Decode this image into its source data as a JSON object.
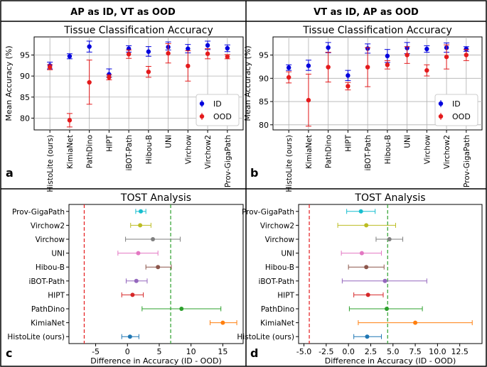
{
  "headers": [
    "AP as ID, VT as OOD",
    "VT as ID, AP as OOD"
  ],
  "models": [
    "HistoLite (ours)",
    "KimiaNet",
    "PathDino",
    "HIPT",
    "iBOT-Path",
    "Hibou-B",
    "UNI",
    "Virchow",
    "Virchow2",
    "Prov-GigaPath"
  ],
  "colors": {
    "id": "#0000dd",
    "ood": "#e41a1c",
    "green_line": "#2ca02c",
    "red_line": "#e41a1c"
  },
  "model_colors": [
    "#1f77b4",
    "#ff7f0e",
    "#2ca02c",
    "#d62728",
    "#9467bd",
    "#8c564b",
    "#e377c2",
    "#7f7f7f",
    "#bcbd22",
    "#17becf"
  ],
  "chart_data": [
    {
      "panel": "a",
      "type": "scatter",
      "title": "Tissue Classification Accuracy",
      "ylabel": "Mean Accuracy (%)",
      "ylim": [
        77.2,
        99.3
      ],
      "yticks": [
        80,
        85,
        90,
        95
      ],
      "legend": [
        "ID",
        "OOD"
      ],
      "legend_loc": "lower-right",
      "categories": [
        "HistoLite (ours)",
        "KimiaNet",
        "PathDino",
        "HIPT",
        "iBOT-Path",
        "Hibou-B",
        "UNI",
        "Virchow",
        "Virchow2",
        "Prov-GigaPath"
      ],
      "series": [
        {
          "name": "ID",
          "values": [
            92.5,
            94.7,
            97.0,
            90.4,
            96.5,
            95.8,
            96.9,
            96.5,
            97.3,
            96.6
          ],
          "err_lo": [
            0.8,
            0.6,
            1.3,
            0.7,
            0.8,
            1.1,
            0.7,
            1.0,
            1.0,
            0.8
          ],
          "err_hi": [
            0.8,
            0.6,
            1.3,
            1.3,
            0.7,
            1.2,
            1.2,
            1.0,
            1.0,
            0.8
          ]
        },
        {
          "name": "OOD",
          "values": [
            92.1,
            79.5,
            88.5,
            89.7,
            95.2,
            91.0,
            95.4,
            92.4,
            95.3,
            94.6
          ],
          "err_lo": [
            0.6,
            1.6,
            5.2,
            0.6,
            1.0,
            1.3,
            2.3,
            3.6,
            1.2,
            0.5
          ],
          "err_hi": [
            0.6,
            1.6,
            5.3,
            0.6,
            1.0,
            1.3,
            2.3,
            3.6,
            1.2,
            0.5
          ]
        }
      ]
    },
    {
      "panel": "b",
      "type": "scatter",
      "title": "Tissue Classification Accuracy",
      "ylabel": "Mean Accuracy (%)",
      "ylim": [
        78.9,
        98.9
      ],
      "yticks": [
        80,
        85,
        90,
        95
      ],
      "legend": [
        "ID",
        "OOD"
      ],
      "legend_loc": "lower-right",
      "categories": [
        "HistoLite (ours)",
        "KimiaNet",
        "PathDino",
        "HIPT",
        "iBOT-Path",
        "Hibou-B",
        "UNI",
        "Virchow",
        "Virchow2",
        "Prov-GigaPath"
      ],
      "series": [
        {
          "name": "ID",
          "values": [
            92.3,
            92.7,
            96.6,
            90.6,
            96.4,
            94.8,
            96.5,
            96.3,
            96.6,
            96.3
          ],
          "err_lo": [
            0.6,
            1.0,
            1.1,
            1.1,
            1.0,
            1.4,
            1.2,
            0.7,
            1.0,
            0.5
          ],
          "err_hi": [
            0.6,
            1.2,
            1.1,
            1.1,
            1.0,
            1.4,
            1.2,
            0.7,
            1.0,
            0.5
          ]
        },
        {
          "name": "OOD",
          "values": [
            90.2,
            85.3,
            92.4,
            88.3,
            92.4,
            92.9,
            95.0,
            91.7,
            94.6,
            95.0
          ],
          "err_lo": [
            1.2,
            5.6,
            3.2,
            0.8,
            4.2,
            0.9,
            1.8,
            1.2,
            2.6,
            1.2
          ],
          "err_hi": [
            1.2,
            5.6,
            3.2,
            0.8,
            4.2,
            0.9,
            1.8,
            1.2,
            2.6,
            1.2
          ]
        }
      ]
    },
    {
      "panel": "c",
      "type": "scatter",
      "title": "TOST Analysis",
      "xlabel": "Difference in Accuracy (ID - OOD)",
      "xlim": [
        -9.2,
        18.2
      ],
      "xticks": [
        -5,
        0,
        5,
        10,
        15
      ],
      "xticklabels": [
        "-5",
        "0",
        "5",
        "10",
        "15"
      ],
      "bounds": [
        -6.8,
        6.8
      ],
      "categories": [
        "HistoLite (ours)",
        "KimiaNet",
        "PathDino",
        "HIPT",
        "iBOT-Path",
        "Hibou-B",
        "UNI",
        "Virchow",
        "Virchow2",
        "Prov-GigaPath"
      ],
      "values": [
        0.4,
        15.0,
        8.5,
        0.8,
        1.4,
        4.8,
        1.7,
        4.0,
        2.0,
        2.1
      ],
      "ci_lo": [
        -0.9,
        13.0,
        2.3,
        -0.9,
        -0.2,
        2.9,
        -1.5,
        -0.3,
        0.5,
        1.3
      ],
      "ci_hi": [
        1.8,
        17.2,
        14.7,
        2.5,
        3.1,
        6.9,
        4.8,
        8.3,
        3.7,
        2.9
      ]
    },
    {
      "panel": "d",
      "type": "scatter",
      "title": "TOST Analysis",
      "xlabel": "Difference in Accuracy (ID - OOD)",
      "xlim": [
        -5.6,
        15.0
      ],
      "xticks": [
        -5.0,
        -2.5,
        0.0,
        2.5,
        5.0,
        7.5,
        10.0,
        12.5
      ],
      "xticklabels": [
        "-5.0",
        "-2.5",
        "0.0",
        "2.5",
        "5.0",
        "7.5",
        "10.0",
        "12.5"
      ],
      "bounds": [
        -4.4,
        4.4
      ],
      "categories": [
        "HistoLite (ours)",
        "KimiaNet",
        "PathDino",
        "HIPT",
        "iBOT-Path",
        "Hibou-B",
        "UNI",
        "Virchow",
        "Virchow2",
        "Prov-GigaPath"
      ],
      "values": [
        2.1,
        7.5,
        4.3,
        2.2,
        4.1,
        2.0,
        1.5,
        4.6,
        2.0,
        1.4
      ],
      "ci_lo": [
        0.6,
        1.1,
        0.1,
        0.6,
        -0.7,
        0.0,
        -0.8,
        3.1,
        -1.2,
        -0.2
      ],
      "ci_hi": [
        3.7,
        13.9,
        8.3,
        3.9,
        8.8,
        4.0,
        3.7,
        6.1,
        5.3,
        3.0
      ]
    }
  ],
  "panel_labels": [
    "a",
    "b",
    "c",
    "d"
  ]
}
